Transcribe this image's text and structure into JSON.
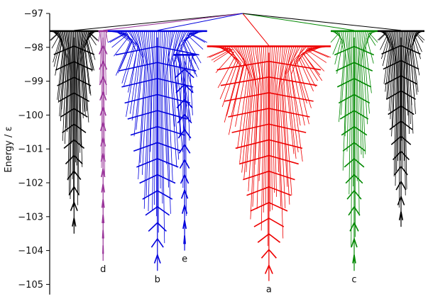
{
  "chart_data": {
    "type": "disconnectivity-graph",
    "ylabel": "Energy / ε",
    "ylim": [
      -105.3,
      -97
    ],
    "yticks": [
      -97,
      -98,
      -99,
      -100,
      -101,
      -102,
      -103,
      -104,
      -105
    ],
    "ytick_labels": [
      "−97",
      "−98",
      "−99",
      "−100",
      "−101",
      "−102",
      "−103",
      "−104",
      "−105"
    ],
    "root_energy": -97,
    "basins": [
      {
        "label": "",
        "color": "#000000",
        "root": -97.5,
        "min": -103.5,
        "xfrac": [
          0.0,
          0.13
        ],
        "leaves": 46
      },
      {
        "label": "d",
        "color": "#993399",
        "root": -97.5,
        "min": -104.3,
        "xfrac": [
          0.13,
          0.155
        ],
        "leaves": 7
      },
      {
        "label": "b",
        "color": "#0000dd",
        "root": -97.5,
        "min": -104.6,
        "xfrac": [
          0.155,
          0.42
        ],
        "leaves": 50
      },
      {
        "label": "e",
        "color": "#0000dd",
        "root": -98.2,
        "min": -104.0,
        "xfrac": [
          0.33,
          0.39
        ],
        "leaves": 8
      },
      {
        "label": "a",
        "color": "#ee0000",
        "root": -97.95,
        "min": -104.9,
        "xfrac": [
          0.42,
          0.75
        ],
        "leaves": 58
      },
      {
        "label": "c",
        "color": "#008800",
        "root": -97.5,
        "min": -104.6,
        "xfrac": [
          0.75,
          0.875
        ],
        "leaves": 24
      },
      {
        "label": "",
        "color": "#000000",
        "root": -97.5,
        "min": -103.3,
        "xfrac": [
          0.875,
          1.0
        ],
        "leaves": 38
      }
    ]
  }
}
